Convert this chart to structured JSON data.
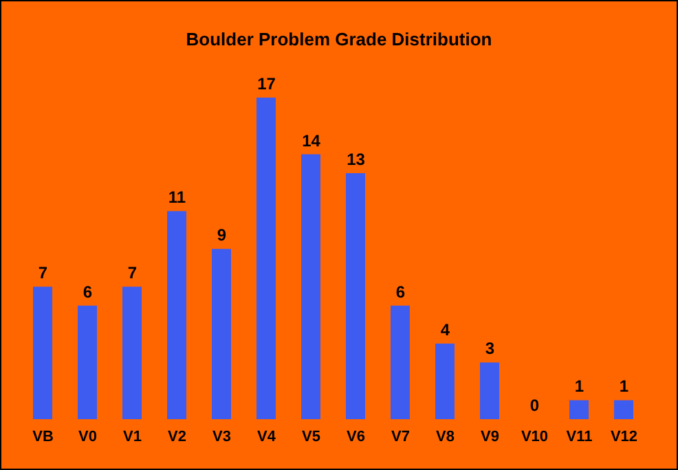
{
  "chart_data": {
    "type": "bar",
    "title": "Boulder Problem Grade Distribution",
    "categories": [
      "VB",
      "V0",
      "V1",
      "V2",
      "V3",
      "V4",
      "V5",
      "V6",
      "V7",
      "V8",
      "V9",
      "V10",
      "V11",
      "V12"
    ],
    "values": [
      7,
      6,
      7,
      11,
      9,
      17,
      14,
      13,
      6,
      4,
      3,
      0,
      1,
      1
    ],
    "color": "#3f5cf0",
    "data_labels": true
  }
}
